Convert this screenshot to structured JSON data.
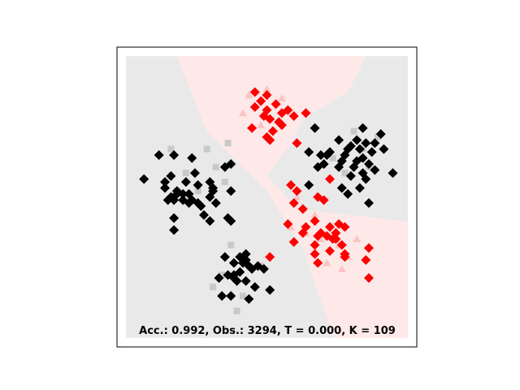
{
  "chart_data": {
    "type": "scatter",
    "title": "",
    "xlabel": "",
    "ylabel": "",
    "xlim": [
      0,
      1
    ],
    "ylim": [
      0,
      1
    ],
    "grid": false,
    "axes_ticks": false,
    "annotation": "Acc.: 0.992, Obs.: 3294, T = 0.000, K = 109",
    "colors": {
      "class_black": "#000000",
      "class_red": "#ff0000",
      "region_black": "#e9e9e9",
      "region_red": "#ffe8e8",
      "faded_black": "#c9c9c9",
      "faded_red": "#ffc3c3"
    },
    "decision_regions": [
      {
        "class": "black",
        "polygon": [
          [
            0.03,
            0.97
          ],
          [
            0.2,
            0.97
          ],
          [
            0.3,
            0.72
          ],
          [
            0.5,
            0.52
          ],
          [
            0.62,
            0.33
          ],
          [
            0.7,
            0.1
          ],
          [
            0.72,
            0.03
          ],
          [
            0.03,
            0.03
          ]
        ]
      },
      {
        "class": "red",
        "polygon": [
          [
            0.2,
            0.97
          ],
          [
            0.83,
            0.97
          ],
          [
            0.77,
            0.85
          ],
          [
            0.62,
            0.76
          ],
          [
            0.58,
            0.68
          ],
          [
            0.5,
            0.57
          ],
          [
            0.6,
            0.46
          ],
          [
            0.95,
            0.42
          ],
          [
            0.97,
            0.42
          ],
          [
            0.97,
            0.03
          ],
          [
            0.72,
            0.03
          ],
          [
            0.7,
            0.1
          ],
          [
            0.62,
            0.33
          ],
          [
            0.5,
            0.52
          ],
          [
            0.3,
            0.72
          ]
        ]
      },
      {
        "class": "black",
        "polygon": [
          [
            0.83,
            0.97
          ],
          [
            0.97,
            0.97
          ],
          [
            0.97,
            0.42
          ],
          [
            0.95,
            0.42
          ],
          [
            0.6,
            0.46
          ],
          [
            0.5,
            0.57
          ],
          [
            0.58,
            0.68
          ],
          [
            0.62,
            0.76
          ],
          [
            0.77,
            0.85
          ]
        ]
      }
    ],
    "faded_points": [
      {
        "x": 0.37,
        "y": 0.68,
        "class": "black"
      },
      {
        "x": 0.33,
        "y": 0.6,
        "class": "black"
      },
      {
        "x": 0.23,
        "y": 0.58,
        "class": "black"
      },
      {
        "x": 0.18,
        "y": 0.66,
        "class": "black"
      },
      {
        "x": 0.27,
        "y": 0.52,
        "class": "black"
      },
      {
        "x": 0.36,
        "y": 0.55,
        "class": "black"
      },
      {
        "x": 0.3,
        "y": 0.66,
        "class": "black"
      },
      {
        "x": 0.2,
        "y": 0.52,
        "class": "black"
      },
      {
        "x": 0.38,
        "y": 0.34,
        "class": "black"
      },
      {
        "x": 0.35,
        "y": 0.24,
        "class": "black"
      },
      {
        "x": 0.42,
        "y": 0.17,
        "class": "black"
      },
      {
        "x": 0.48,
        "y": 0.27,
        "class": "black"
      },
      {
        "x": 0.42,
        "y": 0.3,
        "class": "black"
      },
      {
        "x": 0.32,
        "y": 0.2,
        "class": "black"
      },
      {
        "x": 0.4,
        "y": 0.12,
        "class": "black"
      },
      {
        "x": 0.72,
        "y": 0.63,
        "class": "black"
      },
      {
        "x": 0.79,
        "y": 0.72,
        "class": "black"
      },
      {
        "x": 0.82,
        "y": 0.66,
        "class": "black"
      },
      {
        "x": 0.87,
        "y": 0.7,
        "class": "black"
      },
      {
        "x": 0.76,
        "y": 0.58,
        "class": "black"
      },
      {
        "x": 0.84,
        "y": 0.6,
        "class": "black"
      },
      {
        "x": 0.44,
        "y": 0.84,
        "class": "red"
      },
      {
        "x": 0.5,
        "y": 0.86,
        "class": "red"
      },
      {
        "x": 0.55,
        "y": 0.83,
        "class": "red"
      },
      {
        "x": 0.42,
        "y": 0.78,
        "class": "red"
      },
      {
        "x": 0.48,
        "y": 0.74,
        "class": "red"
      },
      {
        "x": 0.6,
        "y": 0.5,
        "class": "red"
      },
      {
        "x": 0.63,
        "y": 0.38,
        "class": "red"
      },
      {
        "x": 0.68,
        "y": 0.36,
        "class": "red"
      },
      {
        "x": 0.74,
        "y": 0.34,
        "class": "red"
      },
      {
        "x": 0.77,
        "y": 0.3,
        "class": "red"
      },
      {
        "x": 0.7,
        "y": 0.28,
        "class": "red"
      },
      {
        "x": 0.8,
        "y": 0.36,
        "class": "red"
      },
      {
        "x": 0.66,
        "y": 0.44,
        "class": "red"
      },
      {
        "x": 0.75,
        "y": 0.26,
        "class": "red"
      },
      {
        "x": 0.58,
        "y": 0.4,
        "class": "red"
      }
    ],
    "series": [
      {
        "class": "black",
        "points": [
          {
            "x": 0.14,
            "y": 0.64
          },
          {
            "x": 0.19,
            "y": 0.64
          },
          {
            "x": 0.25,
            "y": 0.63
          },
          {
            "x": 0.09,
            "y": 0.56
          },
          {
            "x": 0.18,
            "y": 0.57
          },
          {
            "x": 0.26,
            "y": 0.58
          },
          {
            "x": 0.16,
            "y": 0.55
          },
          {
            "x": 0.23,
            "y": 0.55
          },
          {
            "x": 0.27,
            "y": 0.54
          },
          {
            "x": 0.31,
            "y": 0.55
          },
          {
            "x": 0.16,
            "y": 0.53
          },
          {
            "x": 0.2,
            "y": 0.52
          },
          {
            "x": 0.22,
            "y": 0.51
          },
          {
            "x": 0.24,
            "y": 0.51
          },
          {
            "x": 0.32,
            "y": 0.53
          },
          {
            "x": 0.18,
            "y": 0.5
          },
          {
            "x": 0.19,
            "y": 0.49
          },
          {
            "x": 0.22,
            "y": 0.49
          },
          {
            "x": 0.24,
            "y": 0.48
          },
          {
            "x": 0.27,
            "y": 0.48
          },
          {
            "x": 0.31,
            "y": 0.5
          },
          {
            "x": 0.33,
            "y": 0.48
          },
          {
            "x": 0.32,
            "y": 0.52
          },
          {
            "x": 0.17,
            "y": 0.49
          },
          {
            "x": 0.38,
            "y": 0.52
          },
          {
            "x": 0.2,
            "y": 0.51
          },
          {
            "x": 0.36,
            "y": 0.6
          },
          {
            "x": 0.38,
            "y": 0.61
          },
          {
            "x": 0.28,
            "y": 0.47
          },
          {
            "x": 0.25,
            "y": 0.49
          },
          {
            "x": 0.29,
            "y": 0.44
          },
          {
            "x": 0.19,
            "y": 0.43
          },
          {
            "x": 0.37,
            "y": 0.43
          },
          {
            "x": 0.31,
            "y": 0.42
          },
          {
            "x": 0.38,
            "y": 0.42
          },
          {
            "x": 0.19,
            "y": 0.39
          },
          {
            "x": 0.36,
            "y": 0.3
          },
          {
            "x": 0.43,
            "y": 0.31
          },
          {
            "x": 0.41,
            "y": 0.3
          },
          {
            "x": 0.43,
            "y": 0.29
          },
          {
            "x": 0.42,
            "y": 0.28
          },
          {
            "x": 0.39,
            "y": 0.28
          },
          {
            "x": 0.44,
            "y": 0.27
          },
          {
            "x": 0.45,
            "y": 0.26
          },
          {
            "x": 0.47,
            "y": 0.27
          },
          {
            "x": 0.41,
            "y": 0.25
          },
          {
            "x": 0.39,
            "y": 0.24
          },
          {
            "x": 0.37,
            "y": 0.24
          },
          {
            "x": 0.49,
            "y": 0.26
          },
          {
            "x": 0.39,
            "y": 0.23
          },
          {
            "x": 0.34,
            "y": 0.23
          },
          {
            "x": 0.4,
            "y": 0.22
          },
          {
            "x": 0.43,
            "y": 0.22
          },
          {
            "x": 0.46,
            "y": 0.2
          },
          {
            "x": 0.51,
            "y": 0.19
          },
          {
            "x": 0.35,
            "y": 0.17
          },
          {
            "x": 0.38,
            "y": 0.17
          },
          {
            "x": 0.44,
            "y": 0.16
          },
          {
            "x": 0.66,
            "y": 0.73
          },
          {
            "x": 0.82,
            "y": 0.73
          },
          {
            "x": 0.88,
            "y": 0.71
          },
          {
            "x": 0.74,
            "y": 0.69
          },
          {
            "x": 0.8,
            "y": 0.69
          },
          {
            "x": 0.83,
            "y": 0.68
          },
          {
            "x": 0.86,
            "y": 0.68
          },
          {
            "x": 0.64,
            "y": 0.65
          },
          {
            "x": 0.68,
            "y": 0.64
          },
          {
            "x": 0.7,
            "y": 0.64
          },
          {
            "x": 0.71,
            "y": 0.65
          },
          {
            "x": 0.77,
            "y": 0.66
          },
          {
            "x": 0.78,
            "y": 0.67
          },
          {
            "x": 0.81,
            "y": 0.66
          },
          {
            "x": 0.85,
            "y": 0.65
          },
          {
            "x": 0.89,
            "y": 0.66
          },
          {
            "x": 0.82,
            "y": 0.63
          },
          {
            "x": 0.8,
            "y": 0.62
          },
          {
            "x": 0.79,
            "y": 0.6
          },
          {
            "x": 0.76,
            "y": 0.64
          },
          {
            "x": 0.75,
            "y": 0.62
          },
          {
            "x": 0.74,
            "y": 0.6
          },
          {
            "x": 0.84,
            "y": 0.61
          },
          {
            "x": 0.86,
            "y": 0.59
          },
          {
            "x": 0.82,
            "y": 0.58
          },
          {
            "x": 0.78,
            "y": 0.57
          },
          {
            "x": 0.69,
            "y": 0.61
          },
          {
            "x": 0.67,
            "y": 0.6
          },
          {
            "x": 0.83,
            "y": 0.56
          },
          {
            "x": 0.92,
            "y": 0.58
          },
          {
            "x": 0.75,
            "y": 0.53
          },
          {
            "x": 0.77,
            "y": 0.51
          },
          {
            "x": 0.84,
            "y": 0.48
          },
          {
            "x": 0.64,
            "y": 0.54
          },
          {
            "x": 0.81,
            "y": 0.53
          }
        ]
      },
      {
        "class": "red",
        "points": [
          {
            "x": 0.46,
            "y": 0.85
          },
          {
            "x": 0.48,
            "y": 0.82
          },
          {
            "x": 0.5,
            "y": 0.84
          },
          {
            "x": 0.53,
            "y": 0.81
          },
          {
            "x": 0.46,
            "y": 0.8
          },
          {
            "x": 0.5,
            "y": 0.79
          },
          {
            "x": 0.55,
            "y": 0.78
          },
          {
            "x": 0.57,
            "y": 0.79
          },
          {
            "x": 0.63,
            "y": 0.78
          },
          {
            "x": 0.49,
            "y": 0.77
          },
          {
            "x": 0.51,
            "y": 0.76
          },
          {
            "x": 0.54,
            "y": 0.75
          },
          {
            "x": 0.45,
            "y": 0.73
          },
          {
            "x": 0.52,
            "y": 0.72
          },
          {
            "x": 0.55,
            "y": 0.74
          },
          {
            "x": 0.59,
            "y": 0.77
          },
          {
            "x": 0.51,
            "y": 0.69
          },
          {
            "x": 0.5,
            "y": 0.7
          },
          {
            "x": 0.6,
            "y": 0.68
          },
          {
            "x": 0.58,
            "y": 0.54
          },
          {
            "x": 0.6,
            "y": 0.52
          },
          {
            "x": 0.71,
            "y": 0.56
          },
          {
            "x": 0.67,
            "y": 0.5
          },
          {
            "x": 0.69,
            "y": 0.49
          },
          {
            "x": 0.59,
            "y": 0.48
          },
          {
            "x": 0.62,
            "y": 0.46
          },
          {
            "x": 0.66,
            "y": 0.42
          },
          {
            "x": 0.63,
            "y": 0.4
          },
          {
            "x": 0.57,
            "y": 0.41
          },
          {
            "x": 0.62,
            "y": 0.38
          },
          {
            "x": 0.71,
            "y": 0.4
          },
          {
            "x": 0.68,
            "y": 0.38
          },
          {
            "x": 0.7,
            "y": 0.37
          },
          {
            "x": 0.67,
            "y": 0.37
          },
          {
            "x": 0.73,
            "y": 0.38
          },
          {
            "x": 0.72,
            "y": 0.36
          },
          {
            "x": 0.74,
            "y": 0.41
          },
          {
            "x": 0.73,
            "y": 0.36
          },
          {
            "x": 0.76,
            "y": 0.4
          },
          {
            "x": 0.66,
            "y": 0.34
          },
          {
            "x": 0.59,
            "y": 0.35
          },
          {
            "x": 0.66,
            "y": 0.31
          },
          {
            "x": 0.71,
            "y": 0.32
          },
          {
            "x": 0.76,
            "y": 0.31
          },
          {
            "x": 0.75,
            "y": 0.34
          },
          {
            "x": 0.76,
            "y": 0.3
          },
          {
            "x": 0.84,
            "y": 0.33
          },
          {
            "x": 0.67,
            "y": 0.28
          },
          {
            "x": 0.83,
            "y": 0.29
          },
          {
            "x": 0.84,
            "y": 0.23
          },
          {
            "x": 0.51,
            "y": 0.3
          }
        ]
      }
    ]
  }
}
